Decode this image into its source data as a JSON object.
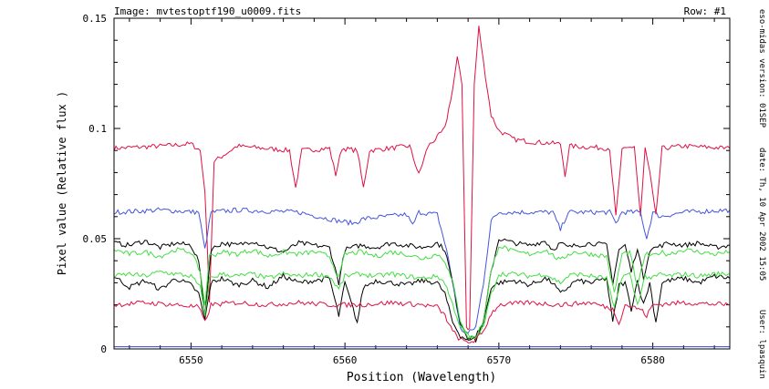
{
  "header": {
    "image_label": "Image: mvtestoptf190_u0009.fits",
    "row_label": "Row: #1"
  },
  "side_info": {
    "version": "eso-midas version: 01SEP",
    "date": "date: Th, 10 Apr 2002 15:05",
    "user": "User: lpasquin"
  },
  "chart_data": {
    "type": "line",
    "xlabel": "Position (Wavelength)",
    "ylabel": "Pixel value (Relative flux )",
    "xlim": [
      6545,
      6585
    ],
    "ylim": [
      0,
      0.15
    ],
    "xticks": [
      6550,
      6560,
      6570,
      6580
    ],
    "yticks": [
      0,
      0.05,
      0.1,
      0.15
    ],
    "ytick_labels": [
      "0",
      "0.05",
      "0.1",
      "0.15"
    ],
    "grid": false,
    "series": [
      {
        "color": "#dd1144",
        "x": [
          6545,
          6548,
          6550,
          6550.6,
          6550.9,
          6551.2,
          6551.5,
          6553,
          6556.4,
          6556.8,
          6557.2,
          6559,
          6559.4,
          6559.8,
          6560.8,
          6561.2,
          6561.6,
          6564.2,
          6564.8,
          6565.4,
          6566,
          6566.5,
          6567,
          6567.3,
          6567.6,
          6567.9,
          6568.1,
          6568.4,
          6568.7,
          6569,
          6569.5,
          6570,
          6571,
          6572,
          6574,
          6574.3,
          6574.6,
          6577.2,
          6577.6,
          6578,
          6578.8,
          6579.2,
          6579.5,
          6579.8,
          6580.2,
          6580.6,
          6582,
          6585
        ],
        "y": [
          0.091,
          0.092,
          0.093,
          0.09,
          0.072,
          0.022,
          0.085,
          0.092,
          0.09,
          0.073,
          0.09,
          0.091,
          0.079,
          0.091,
          0.09,
          0.073,
          0.09,
          0.092,
          0.079,
          0.092,
          0.096,
          0.1,
          0.118,
          0.132,
          0.12,
          0.01,
          0.009,
          0.12,
          0.146,
          0.13,
          0.106,
          0.099,
          0.095,
          0.094,
          0.093,
          0.079,
          0.092,
          0.091,
          0.06,
          0.09,
          0.092,
          0.06,
          0.091,
          0.08,
          0.06,
          0.091,
          0.092,
          0.091
        ]
      },
      {
        "color": "#4455dd",
        "x": [
          6545,
          6548,
          6550.5,
          6550.9,
          6551.3,
          6553,
          6557,
          6559.6,
          6560.6,
          6561.2,
          6564,
          6564.4,
          6564.8,
          6566,
          6566.6,
          6567,
          6567.5,
          6568,
          6568.5,
          6569,
          6569.5,
          6570,
          6573.5,
          6574,
          6574.5,
          6577.2,
          6577.6,
          6578,
          6579.2,
          6579.6,
          6580,
          6580.5,
          6582,
          6585
        ],
        "y": [
          0.062,
          0.063,
          0.062,
          0.045,
          0.062,
          0.063,
          0.062,
          0.058,
          0.057,
          0.059,
          0.061,
          0.056,
          0.062,
          0.061,
          0.045,
          0.03,
          0.009,
          0.007,
          0.01,
          0.03,
          0.058,
          0.062,
          0.062,
          0.054,
          0.062,
          0.062,
          0.057,
          0.062,
          0.062,
          0.05,
          0.062,
          0.06,
          0.062,
          0.063
        ]
      },
      {
        "color": "#000000",
        "x": [
          6545,
          6546,
          6547,
          6548,
          6549,
          6550,
          6550.5,
          6550.9,
          6551.3,
          6552,
          6553,
          6554,
          6555,
          6556,
          6557,
          6558,
          6559,
          6559.6,
          6560,
          6561,
          6562,
          6563,
          6564,
          6565,
          6566,
          6566.5,
          6567,
          6567.5,
          6568,
          6568.5,
          6569,
          6569.5,
          6570,
          6571,
          6572,
          6573,
          6573.5,
          6574,
          6574.5,
          6575,
          6576,
          6577,
          6577.4,
          6577.8,
          6578.2,
          6578.6,
          6579,
          6579.4,
          6579.8,
          6580.2,
          6580.6,
          6581,
          6582,
          6583,
          6584,
          6585
        ],
        "y": [
          0.048,
          0.047,
          0.049,
          0.046,
          0.048,
          0.047,
          0.04,
          0.015,
          0.045,
          0.048,
          0.047,
          0.049,
          0.046,
          0.044,
          0.048,
          0.047,
          0.046,
          0.03,
          0.045,
          0.047,
          0.046,
          0.048,
          0.047,
          0.046,
          0.048,
          0.045,
          0.03,
          0.012,
          0.005,
          0.004,
          0.012,
          0.035,
          0.05,
          0.048,
          0.047,
          0.049,
          0.045,
          0.048,
          0.046,
          0.047,
          0.048,
          0.047,
          0.03,
          0.045,
          0.047,
          0.035,
          0.046,
          0.032,
          0.045,
          0.046,
          0.047,
          0.048,
          0.047,
          0.048,
          0.046,
          0.047
        ]
      },
      {
        "color": "#000000",
        "x": [
          6545,
          6546,
          6547,
          6548,
          6549,
          6550,
          6550.5,
          6550.9,
          6551.3,
          6552,
          6553,
          6554,
          6555,
          6556,
          6557,
          6558,
          6559,
          6559.6,
          6560,
          6560.8,
          6561.2,
          6562,
          6563,
          6564,
          6565,
          6566,
          6566.5,
          6567,
          6567.5,
          6568,
          6568.5,
          6569,
          6569.5,
          6570,
          6571,
          6572,
          6573,
          6573.5,
          6574,
          6575,
          6576,
          6577,
          6577.4,
          6577.8,
          6578.2,
          6578.6,
          6579,
          6579.4,
          6579.8,
          6580.2,
          6580.6,
          6581,
          6582,
          6583,
          6584,
          6585
        ],
        "y": [
          0.033,
          0.028,
          0.031,
          0.027,
          0.032,
          0.029,
          0.025,
          0.013,
          0.03,
          0.032,
          0.029,
          0.031,
          0.028,
          0.033,
          0.03,
          0.031,
          0.032,
          0.015,
          0.03,
          0.012,
          0.028,
          0.031,
          0.03,
          0.029,
          0.031,
          0.03,
          0.025,
          0.012,
          0.006,
          0.004,
          0.006,
          0.012,
          0.028,
          0.03,
          0.031,
          0.029,
          0.032,
          0.03,
          0.025,
          0.031,
          0.03,
          0.032,
          0.012,
          0.029,
          0.03,
          0.018,
          0.031,
          0.02,
          0.03,
          0.012,
          0.03,
          0.031,
          0.032,
          0.03,
          0.033,
          0.032
        ]
      },
      {
        "color": "#44dd44",
        "x": [
          6545,
          6546,
          6547,
          6548,
          6549,
          6550,
          6550.6,
          6550.9,
          6551.2,
          6552,
          6553,
          6554,
          6555,
          6556,
          6557,
          6558,
          6559,
          6559.6,
          6560,
          6561,
          6562,
          6563,
          6564,
          6565,
          6566,
          6566.5,
          6567,
          6567.5,
          6568,
          6568.5,
          6569,
          6569.5,
          6570,
          6571,
          6572,
          6573,
          6574,
          6574.5,
          6575,
          6576,
          6577,
          6577.5,
          6578,
          6578.5,
          6579,
          6579.5,
          6580,
          6580.5,
          6581,
          6582,
          6583,
          6584,
          6585
        ],
        "y": [
          0.045,
          0.043,
          0.044,
          0.042,
          0.045,
          0.044,
          0.035,
          0.02,
          0.042,
          0.044,
          0.043,
          0.045,
          0.042,
          0.044,
          0.043,
          0.044,
          0.042,
          0.032,
          0.043,
          0.044,
          0.042,
          0.044,
          0.043,
          0.041,
          0.043,
          0.04,
          0.03,
          0.013,
          0.006,
          0.005,
          0.013,
          0.035,
          0.047,
          0.044,
          0.043,
          0.045,
          0.04,
          0.043,
          0.044,
          0.043,
          0.042,
          0.025,
          0.043,
          0.044,
          0.028,
          0.043,
          0.042,
          0.044,
          0.043,
          0.045,
          0.044,
          0.043,
          0.044
        ]
      },
      {
        "color": "#44dd44",
        "x": [
          6545,
          6546,
          6547,
          6548,
          6549,
          6550,
          6550.6,
          6550.9,
          6551.2,
          6552,
          6553,
          6554,
          6555,
          6556,
          6557,
          6558,
          6559,
          6559.6,
          6560,
          6561,
          6562,
          6563,
          6564,
          6565,
          6566,
          6566.5,
          6567,
          6567.5,
          6568,
          6568.5,
          6569,
          6569.5,
          6570,
          6571,
          6572,
          6573,
          6574,
          6574.5,
          6575,
          6576,
          6577,
          6577.5,
          6578,
          6578.5,
          6579,
          6579.5,
          6580,
          6580.5,
          6581,
          6582,
          6583,
          6584,
          6585
        ],
        "y": [
          0.033,
          0.034,
          0.033,
          0.035,
          0.034,
          0.033,
          0.028,
          0.015,
          0.032,
          0.034,
          0.033,
          0.034,
          0.032,
          0.034,
          0.033,
          0.034,
          0.033,
          0.027,
          0.033,
          0.034,
          0.033,
          0.034,
          0.033,
          0.032,
          0.033,
          0.03,
          0.02,
          0.01,
          0.005,
          0.005,
          0.01,
          0.025,
          0.034,
          0.034,
          0.033,
          0.034,
          0.03,
          0.033,
          0.034,
          0.033,
          0.032,
          0.018,
          0.033,
          0.034,
          0.02,
          0.033,
          0.032,
          0.034,
          0.033,
          0.034,
          0.033,
          0.034,
          0.034
        ]
      },
      {
        "color": "#dd1144",
        "x": [
          6545,
          6547,
          6549,
          6550.5,
          6550.9,
          6551.3,
          6553,
          6555,
          6557,
          6559,
          6561,
          6563,
          6565,
          6566,
          6566.5,
          6567,
          6567.5,
          6568,
          6568.5,
          6569,
          6569.5,
          6570,
          6572,
          6574,
          6576,
          6577.4,
          6577.8,
          6578.2,
          6579.2,
          6579.6,
          6580,
          6582,
          6585
        ],
        "y": [
          0.02,
          0.021,
          0.02,
          0.019,
          0.012,
          0.02,
          0.021,
          0.02,
          0.021,
          0.02,
          0.02,
          0.021,
          0.02,
          0.019,
          0.015,
          0.008,
          0.004,
          0.003,
          0.004,
          0.008,
          0.016,
          0.02,
          0.021,
          0.02,
          0.021,
          0.018,
          0.012,
          0.02,
          0.018,
          0.015,
          0.02,
          0.021,
          0.02
        ]
      },
      {
        "color": "#3344cc",
        "x": [
          6545,
          6585
        ],
        "y": [
          0.001,
          0.001
        ]
      }
    ]
  }
}
